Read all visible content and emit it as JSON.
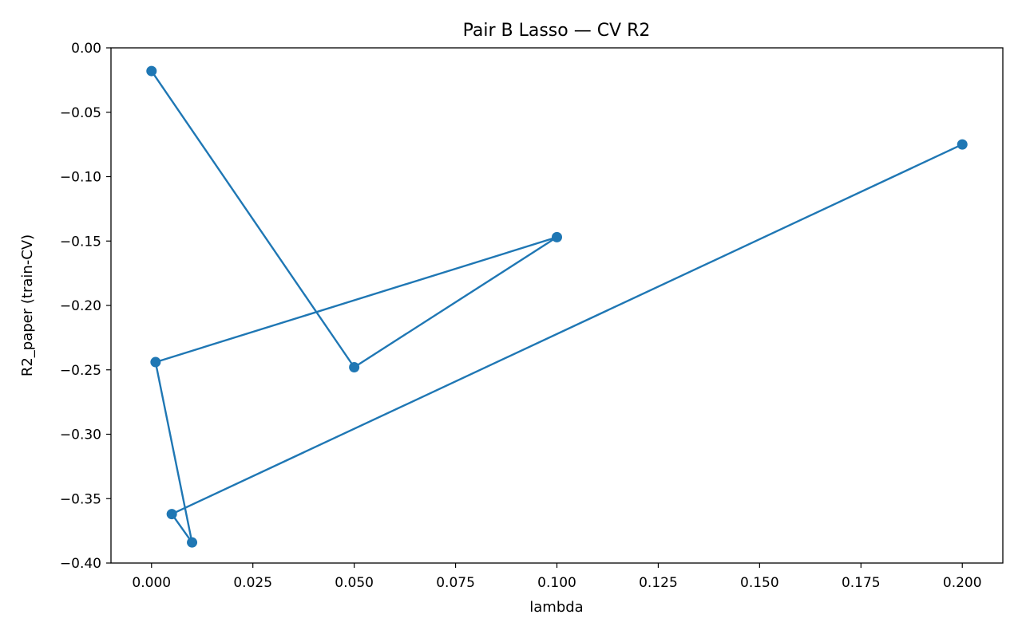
{
  "chart_data": {
    "type": "line",
    "title": "Pair B Lasso — CV R2",
    "xlabel": "lambda",
    "ylabel": "R2_paper (train-CV)",
    "xlim": [
      -0.01,
      0.21
    ],
    "ylim": [
      -0.4,
      0.0
    ],
    "grid": false,
    "x_ticks": [
      0.0,
      0.025,
      0.05,
      0.075,
      0.1,
      0.125,
      0.15,
      0.175,
      0.2
    ],
    "x_tick_labels": [
      "0.000",
      "0.025",
      "0.050",
      "0.075",
      "0.100",
      "0.125",
      "0.150",
      "0.175",
      "0.200"
    ],
    "y_ticks": [
      0.0,
      -0.05,
      -0.1,
      -0.15,
      -0.2,
      -0.25,
      -0.3,
      -0.35,
      -0.4
    ],
    "y_tick_labels": [
      "0.00",
      "−0.05",
      "−0.10",
      "−0.15",
      "−0.20",
      "−0.25",
      "−0.30",
      "−0.35",
      "−0.40"
    ],
    "series": [
      {
        "color": "#1f77b4",
        "marker": "circle",
        "x": [
          0.0,
          0.05,
          0.1,
          0.001,
          0.01,
          0.005,
          0.2
        ],
        "y": [
          -0.018,
          -0.248,
          -0.147,
          -0.244,
          -0.384,
          -0.362,
          -0.075
        ]
      }
    ]
  }
}
